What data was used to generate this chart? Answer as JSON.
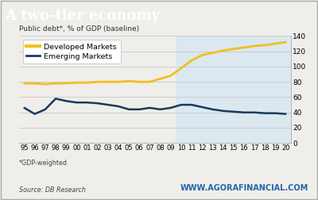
{
  "title": "A two-tier economy",
  "title_bg_color": "#0d3d5c",
  "title_text_color": "#ffffff",
  "ylabel": "Public debt*, % of GDP (baseline)",
  "footnote": "*GDP-weighted",
  "source": "Source: DB Research",
  "watermark": "WWW.AGORAFINANCIAL.COM",
  "year_labels": [
    "95",
    "96",
    "97",
    "98",
    "99",
    "00",
    "01",
    "02",
    "03",
    "04",
    "05",
    "06",
    "07",
    "08",
    "09",
    "10",
    "11",
    "12",
    "13",
    "14",
    "15",
    "16",
    "17",
    "18",
    "19",
    "20"
  ],
  "developed": [
    78,
    78,
    77,
    78,
    78,
    79,
    79,
    80,
    80,
    80,
    81,
    80,
    80,
    84,
    88,
    98,
    108,
    115,
    118,
    121,
    123,
    125,
    127,
    128,
    130,
    132
  ],
  "emerging": [
    46,
    38,
    44,
    58,
    55,
    53,
    53,
    52,
    50,
    48,
    44,
    44,
    46,
    44,
    46,
    50,
    50,
    47,
    44,
    42,
    41,
    40,
    40,
    39,
    39,
    38
  ],
  "developed_color": "#f0c020",
  "emerging_color": "#1a3a5c",
  "shaded_color": "#dce8f0",
  "ylim": [
    0,
    140
  ],
  "yticks": [
    0,
    20,
    40,
    60,
    80,
    100,
    120,
    140
  ],
  "bg_color": "#f0eeea",
  "plot_bg_color": "#f0eeea",
  "grid_color": "#c8c8c8",
  "border_color": "#aaaaaa",
  "watermark_color": "#2266aa"
}
